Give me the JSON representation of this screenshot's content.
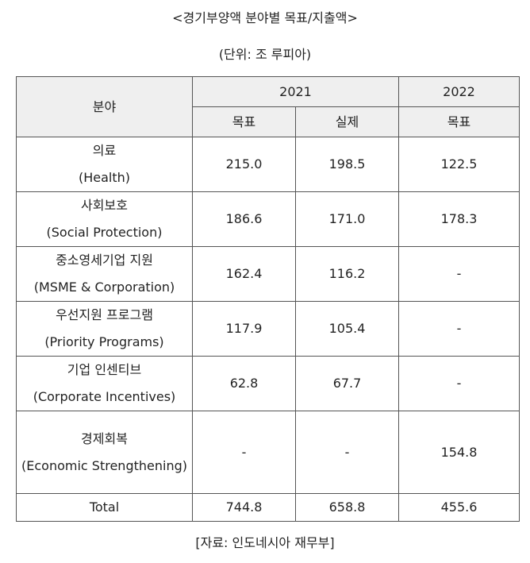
{
  "title": "<경기부양액 분야별 목표/지출액>",
  "unit": "(단위: 조 루피아)",
  "table": {
    "header": {
      "category": "분야",
      "year_2021": "2021",
      "year_2022": "2022",
      "target_2021": "목표",
      "actual_2021": "실제",
      "target_2022": "목표"
    },
    "rows": [
      {
        "ko": "의료",
        "en": "(Health)",
        "target_2021": "215.0",
        "actual_2021": "198.5",
        "target_2022": "122.5"
      },
      {
        "ko": "사회보호",
        "en": "(Social Protection)",
        "target_2021": "186.6",
        "actual_2021": "171.0",
        "target_2022": "178.3"
      },
      {
        "ko": "중소영세기업 지원",
        "en": "(MSME & Corporation)",
        "target_2021": "162.4",
        "actual_2021": "116.2",
        "target_2022": "-"
      },
      {
        "ko": "우선지원 프로그램",
        "en": "(Priority Programs)",
        "target_2021": "117.9",
        "actual_2021": "105.4",
        "target_2022": "-"
      },
      {
        "ko": "기업 인센티브",
        "en": "(Corporate Incentives)",
        "target_2021": "62.8",
        "actual_2021": "67.7",
        "target_2022": "-"
      },
      {
        "ko": "경제회복",
        "en": "(Economic Strengthening)",
        "target_2021": "-",
        "actual_2021": "-",
        "target_2022": "154.8"
      }
    ],
    "total": {
      "label": "Total",
      "target_2021": "744.8",
      "actual_2021": "658.8",
      "target_2022": "455.6"
    }
  },
  "source": "[자료: 인도네시아 재무부]"
}
